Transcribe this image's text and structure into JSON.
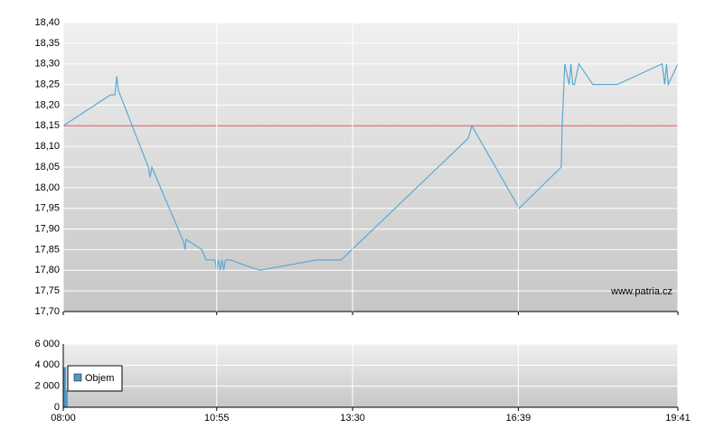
{
  "chart_data": [
    {
      "type": "line",
      "watermark": "www.patria.cz",
      "x": [
        "08:00",
        "08:54",
        "08:59",
        "09:01",
        "09:03",
        "09:37",
        "09:39",
        "09:41",
        "10:17",
        "10:19",
        "10:20",
        "10:38",
        "10:43",
        "10:53",
        "10:55",
        "10:57",
        "10:59",
        "11:01",
        "11:03",
        "11:05",
        "11:10",
        "11:44",
        "12:49",
        "13:17",
        "15:42",
        "15:46",
        "16:40",
        "17:28",
        "17:29",
        "17:32",
        "17:37",
        "17:39",
        "17:41",
        "17:43",
        "17:48",
        "18:04",
        "18:32",
        "19:23",
        "19:26",
        "19:28",
        "19:30",
        "19:41"
      ],
      "series": [
        {
          "color": "#5aa9d6",
          "values": [
            18.15,
            18.225,
            18.225,
            18.27,
            18.235,
            18.05,
            18.025,
            18.05,
            17.87,
            17.85,
            17.875,
            17.85,
            17.825,
            17.825,
            17.8,
            17.825,
            17.8,
            17.825,
            17.8,
            17.825,
            17.825,
            17.8,
            17.825,
            17.825,
            18.12,
            18.15,
            17.95,
            18.05,
            18.15,
            18.3,
            18.25,
            18.3,
            18.25,
            18.25,
            18.3,
            18.25,
            18.25,
            18.3,
            18.25,
            18.3,
            18.25,
            18.3
          ]
        }
      ],
      "reference_value": 18.15,
      "reference_color": "#e05050",
      "xlim": [
        "08:00",
        "19:41"
      ],
      "ylim": [
        17.7,
        18.4
      ],
      "yticks": [
        {
          "value": 17.7,
          "label": "17,70"
        },
        {
          "value": 17.75,
          "label": "17,75"
        },
        {
          "value": 17.8,
          "label": "17,80"
        },
        {
          "value": 17.85,
          "label": "17,85"
        },
        {
          "value": 17.9,
          "label": "17,90"
        },
        {
          "value": 17.95,
          "label": "17,95"
        },
        {
          "value": 18.0,
          "label": "18,00"
        },
        {
          "value": 18.05,
          "label": "18,05"
        },
        {
          "value": 18.1,
          "label": "18,10"
        },
        {
          "value": 18.15,
          "label": "18,15"
        },
        {
          "value": 18.2,
          "label": "18,20"
        },
        {
          "value": 18.25,
          "label": "18,25"
        },
        {
          "value": 18.3,
          "label": "18,30"
        },
        {
          "value": 18.35,
          "label": "18,35"
        },
        {
          "value": 18.4,
          "label": "18,40"
        }
      ],
      "grid": true
    },
    {
      "type": "bar",
      "x": [
        "08:00",
        "08:02"
      ],
      "series": [
        {
          "name": "Objem",
          "color": "#4f97c8",
          "values": [
            3800,
            1600
          ]
        }
      ],
      "xlim": [
        "08:00",
        "19:41"
      ],
      "xticks": [
        "08:00",
        "10:55",
        "13:30",
        "16:39",
        "19:41"
      ],
      "ylim": [
        0,
        6000
      ],
      "yticks": [
        0,
        {
          "value": 2000,
          "label": "2 000"
        },
        {
          "value": 4000,
          "label": "4 000"
        },
        {
          "value": 6000,
          "label": "6 000"
        }
      ],
      "grid": true
    }
  ]
}
